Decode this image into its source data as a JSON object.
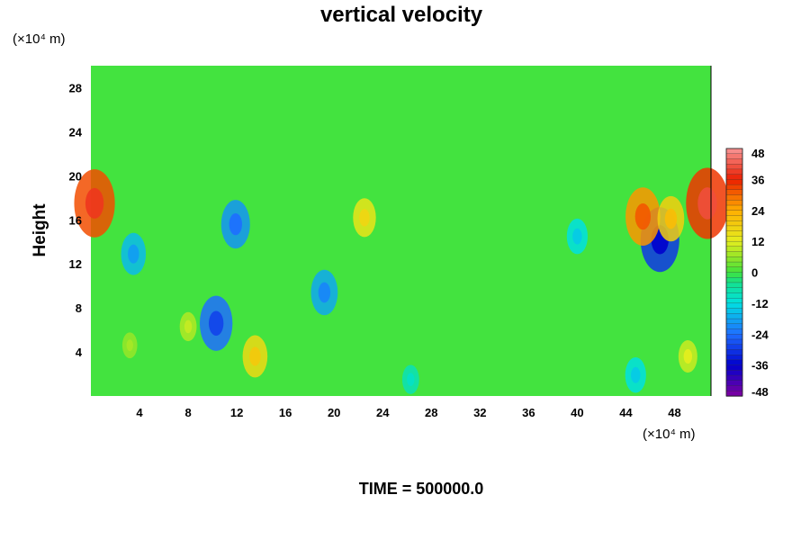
{
  "chart_data": {
    "type": "heatmap",
    "title": "vertical velocity",
    "ylabel": "Height",
    "xlabel": "",
    "y_unit_label": "(×10⁴ m)",
    "x_unit_label": "(×10⁴ m)",
    "x_ticks": [
      4,
      8,
      12,
      16,
      20,
      24,
      28,
      32,
      36,
      40,
      44,
      48
    ],
    "y_ticks": [
      4,
      8,
      12,
      16,
      20,
      24,
      28
    ],
    "xlim": [
      0,
      51
    ],
    "ylim": [
      0,
      30
    ],
    "colorbar": {
      "ticks": [
        48,
        36,
        24,
        12,
        0,
        -12,
        -24,
        -36,
        -48
      ],
      "range": [
        -48,
        48
      ],
      "placement": "right"
    },
    "footer": "TIME = 500000.0",
    "features": [
      {
        "x": 0.3,
        "y": 17.5,
        "value": 32
      },
      {
        "x": 50.7,
        "y": 17.5,
        "value": 34
      },
      {
        "x": 46.8,
        "y": 14.2,
        "value": -30
      },
      {
        "x": 45.4,
        "y": 16.3,
        "value": 26
      },
      {
        "x": 47.7,
        "y": 16.1,
        "value": 18
      },
      {
        "x": 10.3,
        "y": 6.6,
        "value": -24
      },
      {
        "x": 11.9,
        "y": 15.6,
        "value": -20
      },
      {
        "x": 3.5,
        "y": 12.9,
        "value": -16
      },
      {
        "x": 19.2,
        "y": 9.4,
        "value": -18
      },
      {
        "x": 13.5,
        "y": 3.6,
        "value": 16
      },
      {
        "x": 22.5,
        "y": 16.2,
        "value": 14
      },
      {
        "x": 40.0,
        "y": 14.5,
        "value": -12
      },
      {
        "x": 49.1,
        "y": 3.6,
        "value": 10
      },
      {
        "x": 44.8,
        "y": 1.9,
        "value": -12
      },
      {
        "x": 8.0,
        "y": 6.3,
        "value": 8
      },
      {
        "x": 3.2,
        "y": 4.6,
        "value": 6
      },
      {
        "x": 26.3,
        "y": 1.5,
        "value": -8
      }
    ]
  }
}
